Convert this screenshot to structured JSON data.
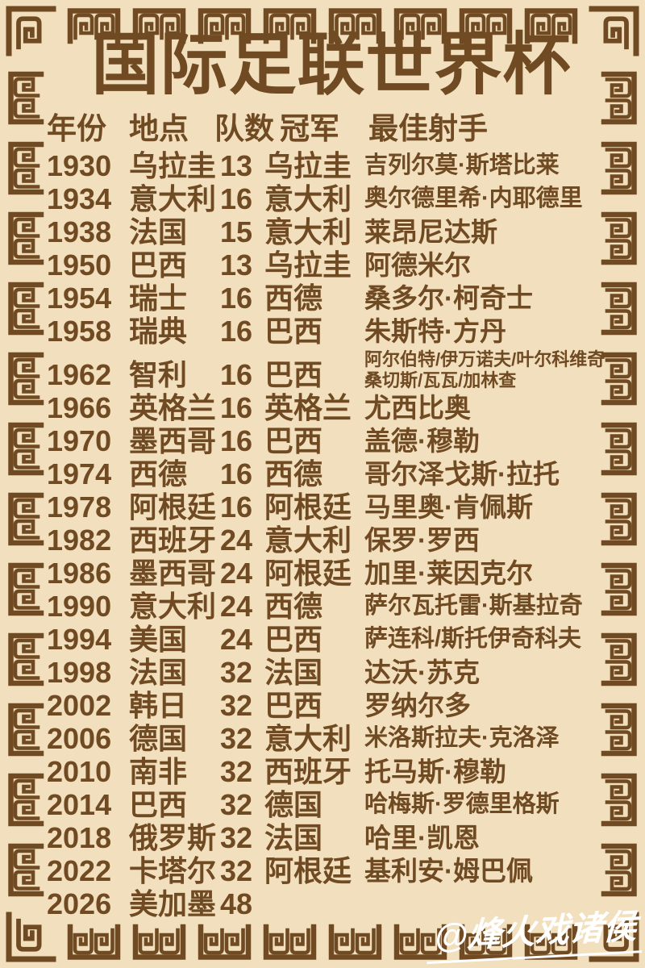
{
  "title": "国际足联世界杯",
  "watermark": "@烽火戏诸侯",
  "colors": {
    "background": "#f2dfbd",
    "ink": "#6f4a23",
    "watermark_text": "#ffffff"
  },
  "border": {
    "style": "chinese-greek-key-fret",
    "color": "#6f4a23"
  },
  "table": {
    "headers": [
      "年份",
      "地点",
      "队数",
      "冠军",
      "最佳射手"
    ],
    "rows": [
      {
        "year": "1930",
        "host": "乌拉圭",
        "teams": "13",
        "champion": "乌拉圭",
        "scorer": "吉列尔莫·斯塔比莱"
      },
      {
        "year": "1934",
        "host": "意大利",
        "teams": "16",
        "champion": "意大利",
        "scorer": "奥尔德里希·内耶德里"
      },
      {
        "year": "1938",
        "host": "法国",
        "teams": "15",
        "champion": "意大利",
        "scorer": "莱昂尼达斯"
      },
      {
        "year": "1950",
        "host": "巴西",
        "teams": "13",
        "champion": "乌拉圭",
        "scorer": "阿德米尔"
      },
      {
        "year": "1954",
        "host": "瑞士",
        "teams": "16",
        "champion": "西德",
        "scorer": "桑多尔·柯奇士"
      },
      {
        "year": "1958",
        "host": "瑞典",
        "teams": "16",
        "champion": "巴西",
        "scorer": "朱斯特·方丹"
      },
      {
        "year": "1962",
        "host": "智利",
        "teams": "16",
        "champion": "巴西",
        "scorer_lines": [
          "阿尔伯特/伊万诺夫/叶尔科维奇",
          "桑切斯/瓦瓦/加林查"
        ]
      },
      {
        "year": "1966",
        "host": "英格兰",
        "teams": "16",
        "champion": "英格兰",
        "scorer": "尤西比奥"
      },
      {
        "year": "1970",
        "host": "墨西哥",
        "teams": "16",
        "champion": "巴西",
        "scorer": "盖德·穆勒"
      },
      {
        "year": "1974",
        "host": "西德",
        "teams": "16",
        "champion": "西德",
        "scorer": "哥尔泽戈斯·拉托"
      },
      {
        "year": "1978",
        "host": "阿根廷",
        "teams": "16",
        "champion": "阿根廷",
        "scorer": "马里奥·肯佩斯"
      },
      {
        "year": "1982",
        "host": "西班牙",
        "teams": "24",
        "champion": "意大利",
        "scorer": "保罗·罗西"
      },
      {
        "year": "1986",
        "host": "墨西哥",
        "teams": "24",
        "champion": "阿根廷",
        "scorer": "加里·莱因克尔"
      },
      {
        "year": "1990",
        "host": "意大利",
        "teams": "24",
        "champion": "西德",
        "scorer": "萨尔瓦托雷·斯基拉奇"
      },
      {
        "year": "1994",
        "host": "美国",
        "teams": "24",
        "champion": "巴西",
        "scorer": "萨连科/斯托伊奇科夫"
      },
      {
        "year": "1998",
        "host": "法国",
        "teams": "32",
        "champion": "法国",
        "scorer": "达沃·苏克"
      },
      {
        "year": "2002",
        "host": "韩日",
        "teams": "32",
        "champion": "巴西",
        "scorer": "罗纳尔多"
      },
      {
        "year": "2006",
        "host": "德国",
        "teams": "32",
        "champion": "意大利",
        "scorer": "米洛斯拉夫·克洛泽"
      },
      {
        "year": "2010",
        "host": "南非",
        "teams": "32",
        "champion": "西班牙",
        "scorer": "托马斯·穆勒"
      },
      {
        "year": "2014",
        "host": "巴西",
        "teams": "32",
        "champion": "德国",
        "scorer": "哈梅斯·罗德里格斯"
      },
      {
        "year": "2018",
        "host": "俄罗斯",
        "teams": "32",
        "champion": "法国",
        "scorer": "哈里·凯恩"
      },
      {
        "year": "2022",
        "host": "卡塔尔",
        "teams": "32",
        "champion": "阿根廷",
        "scorer": "基利安·姆巴佩"
      },
      {
        "year": "2026",
        "host": "美加墨",
        "teams": "48",
        "champion": "",
        "scorer": ""
      }
    ]
  }
}
